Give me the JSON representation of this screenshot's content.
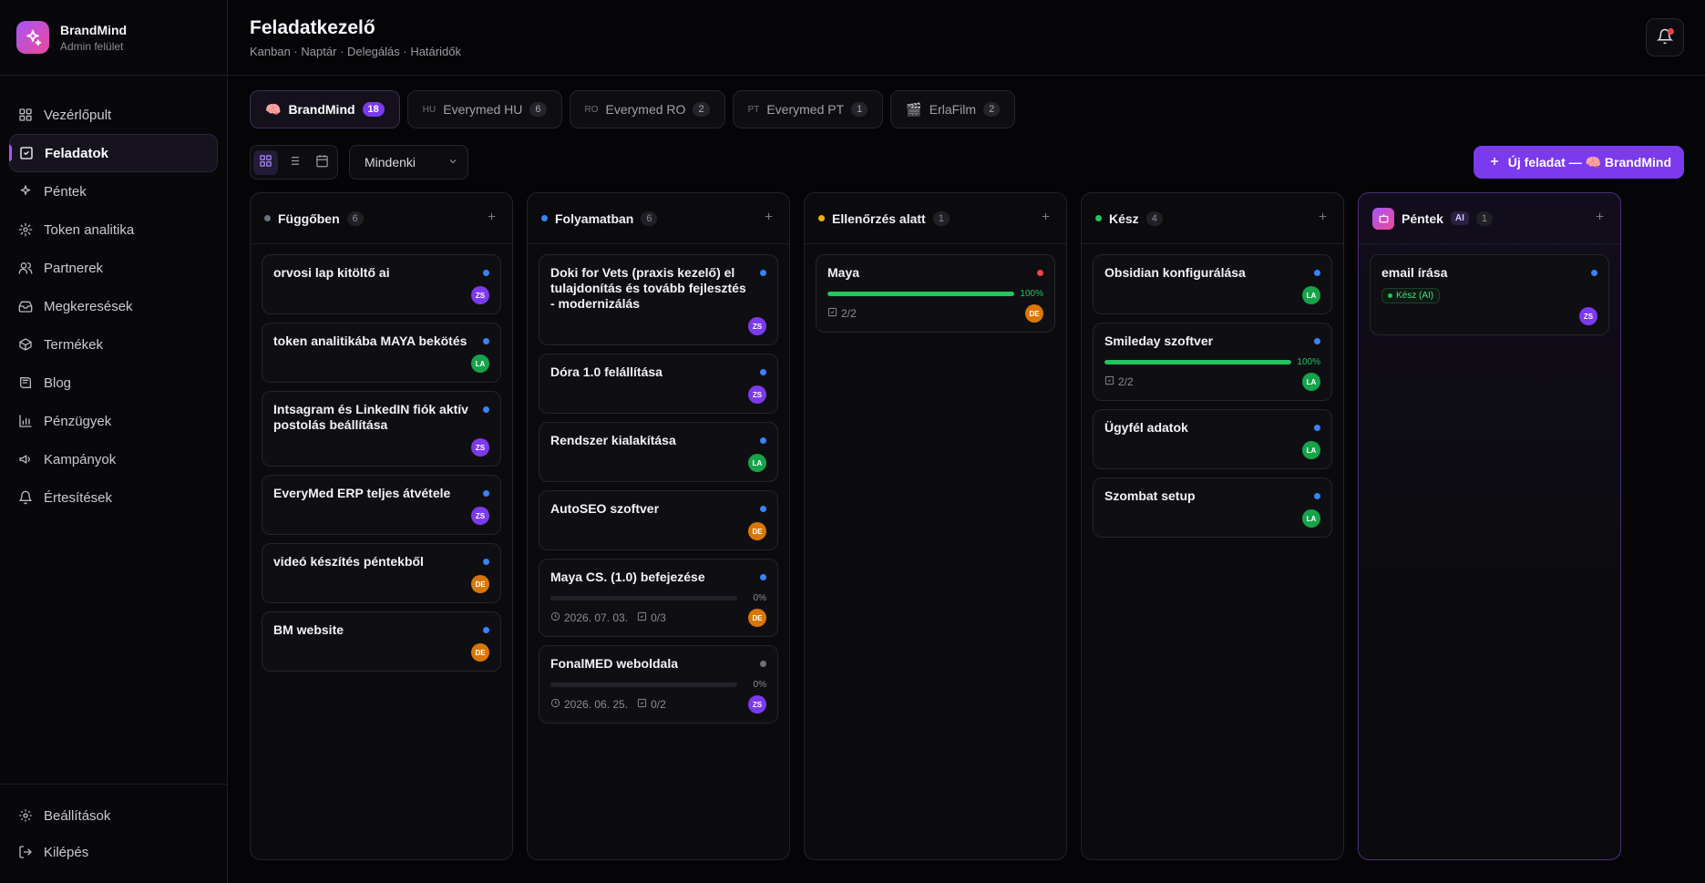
{
  "brand": {
    "name": "BrandMind",
    "sub": "Admin felület"
  },
  "nav": {
    "items": [
      {
        "label": "Vezérlőpult",
        "icon": "grid-icon"
      },
      {
        "label": "Feladatok",
        "icon": "check-square-icon",
        "active": true
      },
      {
        "label": "Péntek",
        "icon": "sparkles-icon"
      },
      {
        "label": "Token analitika",
        "icon": "gear-icon"
      },
      {
        "label": "Partnerek",
        "icon": "users-icon"
      },
      {
        "label": "Megkeresések",
        "icon": "inbox-icon"
      },
      {
        "label": "Termékek",
        "icon": "box-icon"
      },
      {
        "label": "Blog",
        "icon": "book-icon"
      },
      {
        "label": "Pénzügyek",
        "icon": "bar-chart-icon"
      },
      {
        "label": "Kampányok",
        "icon": "megaphone-icon"
      },
      {
        "label": "Értesítések",
        "icon": "bell-icon"
      }
    ],
    "settings": "Beállítások",
    "logout": "Kilépés"
  },
  "header": {
    "title": "Feladatkezelő",
    "subtitle": "Kanban · Naptár · Delegálás · Határidők"
  },
  "tabs": [
    {
      "emoji": "🧠",
      "code": "",
      "label": "BrandMind",
      "count": "18",
      "active": true
    },
    {
      "emoji": "",
      "code": "HU",
      "label": "Everymed HU",
      "count": "6"
    },
    {
      "emoji": "",
      "code": "RO",
      "label": "Everymed RO",
      "count": "2"
    },
    {
      "emoji": "",
      "code": "PT",
      "label": "Everymed PT",
      "count": "1"
    },
    {
      "emoji": "🎬",
      "code": "",
      "label": "ErlaFilm",
      "count": "2"
    }
  ],
  "toolbar": {
    "filter": "Mindenki",
    "new_button": "Új feladat — 🧠 BrandMind"
  },
  "colors": {
    "accent": "#7c3aed",
    "ZS": "#7c3aed",
    "LA": "#16a34a",
    "DE": "#d97706",
    "blue": "#3b82f6",
    "red": "#ef4444",
    "gray": "#6b7280"
  },
  "columns": [
    {
      "title": "Függőben",
      "count": "6",
      "dot": "#6b7280",
      "cards": [
        {
          "title": "orvosi lap kitöltő ai",
          "dot": "#3b82f6",
          "avatar": "ZS"
        },
        {
          "title": "token analitikába MAYA bekötés",
          "dot": "#3b82f6",
          "avatar": "LA"
        },
        {
          "title": "Intsagram és LinkedIN fiók aktív postolás beállítása",
          "dot": "#3b82f6",
          "avatar": "ZS"
        },
        {
          "title": "EveryMed ERP teljes átvétele",
          "dot": "#3b82f6",
          "avatar": "ZS"
        },
        {
          "title": "videó készítés péntekből",
          "dot": "#3b82f6",
          "avatar": "DE"
        },
        {
          "title": "BM website",
          "dot": "#3b82f6",
          "avatar": "DE"
        }
      ]
    },
    {
      "title": "Folyamatban",
      "count": "6",
      "dot": "#3b82f6",
      "cards": [
        {
          "title": "Doki for Vets (praxis kezelő) el tulajdonítás és tovább fejlesztés - modernizálás",
          "dot": "#3b82f6",
          "avatar": "ZS"
        },
        {
          "title": "Dóra 1.0 felállítása",
          "dot": "#3b82f6",
          "avatar": "ZS"
        },
        {
          "title": "Rendszer kialakítása",
          "dot": "#3b82f6",
          "avatar": "LA"
        },
        {
          "title": "AutoSEO szoftver",
          "dot": "#3b82f6",
          "avatar": "DE"
        },
        {
          "title": "Maya CS. (1.0) befejezése",
          "dot": "#3b82f6",
          "avatar": "DE",
          "progress": 0,
          "pct": "0%",
          "date": "2026. 07. 03.",
          "tasks": "0/3"
        },
        {
          "title": "FonalMED weboldala",
          "dot": "#6b7280",
          "avatar": "ZS",
          "progress": 0,
          "pct": "0%",
          "date": "2026. 06. 25.",
          "tasks": "0/2"
        }
      ]
    },
    {
      "title": "Ellenőrzés alatt",
      "count": "1",
      "dot": "#eab308",
      "cards": [
        {
          "title": "Maya",
          "dot": "#ef4444",
          "avatar": "DE",
          "progress": 100,
          "pct": "100%",
          "tasks": "2/2"
        }
      ]
    },
    {
      "title": "Kész",
      "count": "4",
      "dot": "#22c55e",
      "cards": [
        {
          "title": "Obsidian konfigurálása",
          "dot": "#3b82f6",
          "avatar": "LA"
        },
        {
          "title": "Smileday szoftver",
          "dot": "#3b82f6",
          "avatar": "LA",
          "progress": 100,
          "pct": "100%",
          "tasks": "2/2"
        },
        {
          "title": "Ügyfél adatok",
          "dot": "#3b82f6",
          "avatar": "LA"
        },
        {
          "title": "Szombat setup",
          "dot": "#3b82f6",
          "avatar": "LA"
        }
      ]
    },
    {
      "title": "Péntek",
      "count": "1",
      "ai": true,
      "ai_label": "AI",
      "cards": [
        {
          "title": "email írása",
          "dot": "#3b82f6",
          "avatar": "ZS",
          "status": "Kész (AI)"
        }
      ]
    }
  ]
}
